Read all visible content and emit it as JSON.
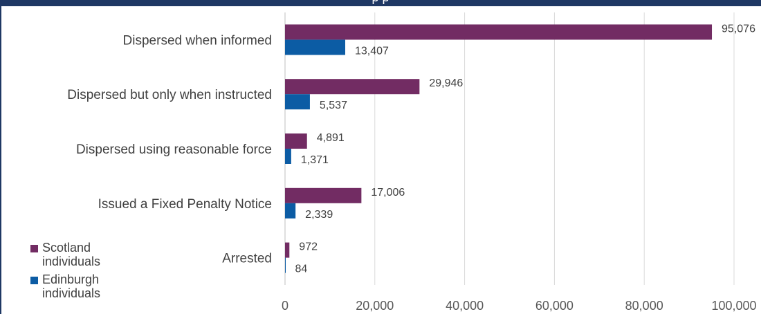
{
  "header": {
    "title_partial": "p                                p"
  },
  "chart_data": {
    "type": "bar",
    "orientation": "horizontal",
    "title": "",
    "xlabel": "",
    "ylabel": "",
    "categories": [
      "Dispersed when informed",
      "Dispersed but only when instructed",
      "Dispersed using reasonable force",
      "Issued a Fixed Penalty Notice",
      "Arrested"
    ],
    "series": [
      {
        "name": "Scotland individuals",
        "color": "#722c63",
        "values": [
          95076,
          29946,
          4891,
          17006,
          972
        ],
        "labels": [
          "95,076",
          "29,946",
          "4,891",
          "17,006",
          "972"
        ]
      },
      {
        "name": "Edinburgh individuals",
        "color": "#0c5ca4",
        "values": [
          13407,
          5537,
          1371,
          2339,
          84
        ],
        "labels": [
          "13,407",
          "5,537",
          "1,371",
          "2,339",
          "84"
        ]
      }
    ],
    "xlim": [
      0,
      100000
    ],
    "xticks": [
      0,
      20000,
      40000,
      60000,
      80000,
      100000
    ],
    "xtick_labels": [
      "0",
      "20,000",
      "40,000",
      "60,000",
      "80,000",
      "100,000"
    ],
    "grid": "vertical",
    "legend_position": "bottom-left"
  }
}
